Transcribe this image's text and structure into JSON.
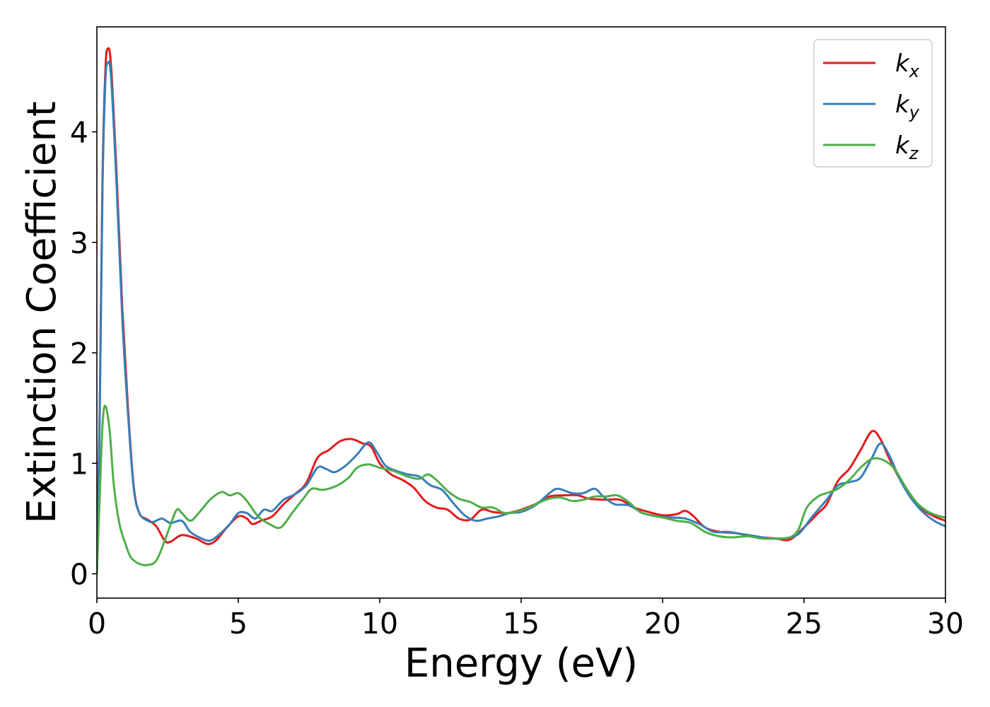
{
  "chart_data": {
    "type": "line",
    "title": "",
    "xlabel": "Energy (eV)",
    "ylabel": "Extinction Coefficient",
    "xlim": [
      0,
      30
    ],
    "ylim": [
      -0.22,
      4.95
    ],
    "xticks": [
      0,
      5,
      10,
      15,
      20,
      25,
      30
    ],
    "yticks": [
      0,
      1,
      2,
      3,
      4
    ],
    "grid": false,
    "legend": "top-right",
    "series": [
      {
        "name": "k",
        "subscript": "x",
        "color": "#e41a1c",
        "points": [
          [
            0,
            0
          ],
          [
            0.1,
            1.5
          ],
          [
            0.2,
            3.6
          ],
          [
            0.3,
            4.55
          ],
          [
            0.38,
            4.75
          ],
          [
            0.5,
            4.6
          ],
          [
            0.7,
            3.6
          ],
          [
            0.9,
            2.4
          ],
          [
            1.1,
            1.5
          ],
          [
            1.3,
            0.8
          ],
          [
            1.5,
            0.55
          ],
          [
            1.8,
            0.49
          ],
          [
            2.1,
            0.43
          ],
          [
            2.4,
            0.3
          ],
          [
            2.6,
            0.29
          ],
          [
            3.0,
            0.35
          ],
          [
            3.5,
            0.32
          ],
          [
            3.9,
            0.27
          ],
          [
            4.2,
            0.3
          ],
          [
            4.6,
            0.42
          ],
          [
            5.0,
            0.52
          ],
          [
            5.3,
            0.5
          ],
          [
            5.5,
            0.45
          ],
          [
            5.8,
            0.48
          ],
          [
            6.2,
            0.52
          ],
          [
            6.6,
            0.63
          ],
          [
            7.0,
            0.72
          ],
          [
            7.4,
            0.82
          ],
          [
            7.8,
            1.05
          ],
          [
            8.2,
            1.12
          ],
          [
            8.6,
            1.2
          ],
          [
            9.0,
            1.22
          ],
          [
            9.4,
            1.18
          ],
          [
            9.7,
            1.15
          ],
          [
            10.0,
            1.0
          ],
          [
            10.4,
            0.9
          ],
          [
            10.8,
            0.85
          ],
          [
            11.2,
            0.78
          ],
          [
            11.6,
            0.66
          ],
          [
            12.0,
            0.6
          ],
          [
            12.4,
            0.58
          ],
          [
            12.8,
            0.5
          ],
          [
            13.2,
            0.49
          ],
          [
            13.6,
            0.58
          ],
          [
            14.0,
            0.56
          ],
          [
            14.5,
            0.55
          ],
          [
            15.0,
            0.58
          ],
          [
            15.5,
            0.63
          ],
          [
            16.0,
            0.7
          ],
          [
            16.5,
            0.71
          ],
          [
            17.0,
            0.71
          ],
          [
            17.4,
            0.68
          ],
          [
            18.0,
            0.67
          ],
          [
            18.5,
            0.67
          ],
          [
            19.0,
            0.6
          ],
          [
            19.5,
            0.56
          ],
          [
            20.0,
            0.53
          ],
          [
            20.5,
            0.54
          ],
          [
            20.8,
            0.57
          ],
          [
            21.1,
            0.52
          ],
          [
            21.5,
            0.42
          ],
          [
            22.0,
            0.38
          ],
          [
            22.5,
            0.37
          ],
          [
            23.0,
            0.35
          ],
          [
            23.5,
            0.33
          ],
          [
            24.0,
            0.32
          ],
          [
            24.5,
            0.31
          ],
          [
            25.0,
            0.42
          ],
          [
            25.5,
            0.55
          ],
          [
            25.8,
            0.63
          ],
          [
            26.2,
            0.84
          ],
          [
            26.6,
            0.95
          ],
          [
            27.0,
            1.12
          ],
          [
            27.4,
            1.29
          ],
          [
            27.7,
            1.22
          ],
          [
            28.0,
            1.05
          ],
          [
            28.4,
            0.85
          ],
          [
            28.8,
            0.68
          ],
          [
            29.2,
            0.58
          ],
          [
            29.6,
            0.52
          ],
          [
            30.0,
            0.48
          ]
        ]
      },
      {
        "name": "k",
        "subscript": "y",
        "color": "#377eb8",
        "points": [
          [
            0,
            0
          ],
          [
            0.1,
            1.4
          ],
          [
            0.2,
            3.5
          ],
          [
            0.3,
            4.45
          ],
          [
            0.38,
            4.62
          ],
          [
            0.5,
            4.5
          ],
          [
            0.7,
            3.5
          ],
          [
            0.9,
            2.3
          ],
          [
            1.1,
            1.45
          ],
          [
            1.3,
            0.78
          ],
          [
            1.5,
            0.55
          ],
          [
            1.8,
            0.48
          ],
          [
            2.0,
            0.47
          ],
          [
            2.3,
            0.5
          ],
          [
            2.6,
            0.46
          ],
          [
            3.0,
            0.48
          ],
          [
            3.3,
            0.38
          ],
          [
            3.7,
            0.32
          ],
          [
            4.0,
            0.3
          ],
          [
            4.3,
            0.35
          ],
          [
            4.7,
            0.45
          ],
          [
            5.0,
            0.55
          ],
          [
            5.3,
            0.55
          ],
          [
            5.6,
            0.5
          ],
          [
            5.9,
            0.58
          ],
          [
            6.2,
            0.57
          ],
          [
            6.6,
            0.67
          ],
          [
            7.0,
            0.72
          ],
          [
            7.4,
            0.8
          ],
          [
            7.8,
            0.96
          ],
          [
            8.1,
            0.95
          ],
          [
            8.4,
            0.92
          ],
          [
            8.8,
            0.98
          ],
          [
            9.2,
            1.08
          ],
          [
            9.6,
            1.19
          ],
          [
            9.9,
            1.1
          ],
          [
            10.2,
            0.98
          ],
          [
            10.6,
            0.93
          ],
          [
            11.0,
            0.9
          ],
          [
            11.4,
            0.88
          ],
          [
            11.8,
            0.8
          ],
          [
            12.2,
            0.76
          ],
          [
            12.6,
            0.64
          ],
          [
            13.0,
            0.53
          ],
          [
            13.4,
            0.48
          ],
          [
            13.8,
            0.5
          ],
          [
            14.2,
            0.52
          ],
          [
            14.6,
            0.55
          ],
          [
            15.0,
            0.56
          ],
          [
            15.5,
            0.62
          ],
          [
            16.0,
            0.73
          ],
          [
            16.3,
            0.77
          ],
          [
            16.8,
            0.73
          ],
          [
            17.2,
            0.73
          ],
          [
            17.6,
            0.77
          ],
          [
            17.9,
            0.7
          ],
          [
            18.3,
            0.63
          ],
          [
            18.8,
            0.62
          ],
          [
            19.3,
            0.55
          ],
          [
            19.8,
            0.52
          ],
          [
            20.3,
            0.51
          ],
          [
            20.8,
            0.5
          ],
          [
            21.3,
            0.45
          ],
          [
            21.8,
            0.38
          ],
          [
            22.3,
            0.38
          ],
          [
            22.8,
            0.36
          ],
          [
            23.3,
            0.34
          ],
          [
            23.8,
            0.32
          ],
          [
            24.3,
            0.32
          ],
          [
            24.8,
            0.36
          ],
          [
            25.3,
            0.52
          ],
          [
            25.8,
            0.67
          ],
          [
            26.2,
            0.8
          ],
          [
            26.6,
            0.83
          ],
          [
            27.0,
            0.87
          ],
          [
            27.4,
            1.05
          ],
          [
            27.7,
            1.18
          ],
          [
            28.0,
            1.08
          ],
          [
            28.4,
            0.85
          ],
          [
            28.8,
            0.68
          ],
          [
            29.2,
            0.56
          ],
          [
            29.6,
            0.48
          ],
          [
            30.0,
            0.43
          ]
        ]
      },
      {
        "name": "k",
        "subscript": "z",
        "color": "#4daf4a",
        "points": [
          [
            0,
            0
          ],
          [
            0.1,
            0.7
          ],
          [
            0.2,
            1.35
          ],
          [
            0.3,
            1.52
          ],
          [
            0.45,
            1.3
          ],
          [
            0.6,
            0.8
          ],
          [
            0.8,
            0.45
          ],
          [
            1.0,
            0.28
          ],
          [
            1.2,
            0.15
          ],
          [
            1.5,
            0.09
          ],
          [
            1.8,
            0.08
          ],
          [
            2.1,
            0.12
          ],
          [
            2.4,
            0.3
          ],
          [
            2.8,
            0.57
          ],
          [
            3.0,
            0.55
          ],
          [
            3.3,
            0.48
          ],
          [
            3.6,
            0.55
          ],
          [
            4.0,
            0.67
          ],
          [
            4.4,
            0.74
          ],
          [
            4.7,
            0.71
          ],
          [
            5.0,
            0.73
          ],
          [
            5.3,
            0.66
          ],
          [
            5.7,
            0.52
          ],
          [
            6.1,
            0.45
          ],
          [
            6.5,
            0.42
          ],
          [
            6.9,
            0.55
          ],
          [
            7.3,
            0.68
          ],
          [
            7.6,
            0.77
          ],
          [
            8.0,
            0.76
          ],
          [
            8.5,
            0.8
          ],
          [
            8.9,
            0.87
          ],
          [
            9.2,
            0.96
          ],
          [
            9.6,
            0.99
          ],
          [
            10.0,
            0.96
          ],
          [
            10.5,
            0.93
          ],
          [
            11.0,
            0.88
          ],
          [
            11.4,
            0.86
          ],
          [
            11.7,
            0.9
          ],
          [
            12.0,
            0.85
          ],
          [
            12.4,
            0.75
          ],
          [
            12.8,
            0.68
          ],
          [
            13.2,
            0.65
          ],
          [
            13.6,
            0.6
          ],
          [
            14.0,
            0.6
          ],
          [
            14.4,
            0.55
          ],
          [
            14.8,
            0.56
          ],
          [
            15.2,
            0.59
          ],
          [
            15.6,
            0.64
          ],
          [
            16.0,
            0.68
          ],
          [
            16.4,
            0.69
          ],
          [
            16.8,
            0.66
          ],
          [
            17.2,
            0.67
          ],
          [
            17.6,
            0.7
          ],
          [
            18.0,
            0.7
          ],
          [
            18.4,
            0.71
          ],
          [
            18.8,
            0.65
          ],
          [
            19.2,
            0.56
          ],
          [
            19.6,
            0.53
          ],
          [
            20.0,
            0.51
          ],
          [
            20.5,
            0.48
          ],
          [
            21.0,
            0.46
          ],
          [
            21.5,
            0.38
          ],
          [
            22.0,
            0.34
          ],
          [
            22.5,
            0.33
          ],
          [
            23.0,
            0.34
          ],
          [
            23.5,
            0.32
          ],
          [
            24.0,
            0.32
          ],
          [
            24.5,
            0.33
          ],
          [
            24.8,
            0.4
          ],
          [
            25.1,
            0.6
          ],
          [
            25.5,
            0.7
          ],
          [
            25.8,
            0.73
          ],
          [
            26.2,
            0.77
          ],
          [
            26.6,
            0.85
          ],
          [
            27.0,
            0.96
          ],
          [
            27.4,
            1.04
          ],
          [
            27.8,
            1.03
          ],
          [
            28.2,
            0.95
          ],
          [
            28.6,
            0.78
          ],
          [
            29.0,
            0.64
          ],
          [
            29.4,
            0.56
          ],
          [
            29.8,
            0.52
          ],
          [
            30.0,
            0.51
          ]
        ]
      }
    ]
  }
}
